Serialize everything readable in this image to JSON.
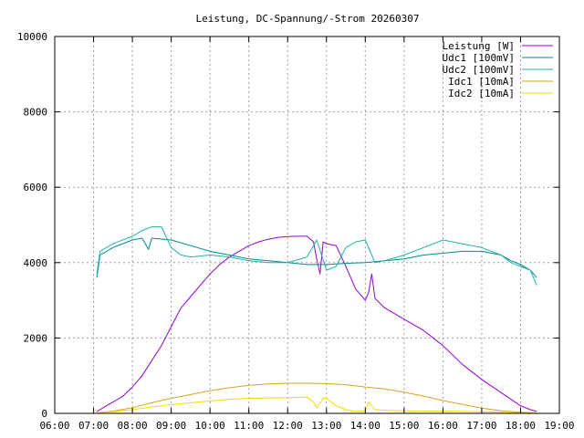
{
  "chart_data": {
    "type": "line",
    "title": "Leistung, DC-Spannung/-Strom 20260307",
    "xlabel": "",
    "ylabel": "",
    "xlim": [
      "06:00",
      "19:00"
    ],
    "ylim": [
      0,
      10000
    ],
    "x_ticks": [
      "06:00",
      "07:00",
      "08:00",
      "09:00",
      "10:00",
      "11:00",
      "12:00",
      "13:00",
      "14:00",
      "15:00",
      "16:00",
      "17:00",
      "18:00",
      "19:00"
    ],
    "y_ticks": [
      "0",
      "2000",
      "4000",
      "6000",
      "8000",
      "10000"
    ],
    "grid": true,
    "legend_position": "top-right",
    "series": [
      {
        "name": "Leistung [W]",
        "color": "#9400d3",
        "x": [
          "07:05",
          "07:10",
          "07:20",
          "07:30",
          "07:45",
          "08:00",
          "08:15",
          "08:30",
          "08:45",
          "09:00",
          "09:15",
          "09:30",
          "09:45",
          "10:00",
          "10:15",
          "10:30",
          "10:45",
          "11:00",
          "11:15",
          "11:30",
          "11:45",
          "12:00",
          "12:15",
          "12:30",
          "12:40",
          "12:45",
          "12:50",
          "12:55",
          "13:00",
          "13:15",
          "13:30",
          "13:45",
          "14:00",
          "14:05",
          "14:10",
          "14:15",
          "14:30",
          "14:45",
          "15:00",
          "15:30",
          "16:00",
          "16:30",
          "17:00",
          "17:30",
          "18:00",
          "18:15",
          "18:25"
        ],
        "y": [
          50,
          100,
          200,
          300,
          450,
          700,
          1000,
          1400,
          1800,
          2300,
          2800,
          3100,
          3400,
          3700,
          3950,
          4150,
          4300,
          4450,
          4550,
          4620,
          4670,
          4690,
          4700,
          4700,
          4550,
          4100,
          3700,
          4550,
          4500,
          4450,
          3900,
          3300,
          3000,
          3200,
          3700,
          3050,
          2800,
          2650,
          2500,
          2200,
          1800,
          1300,
          900,
          550,
          200,
          100,
          50
        ]
      },
      {
        "name": "Udc1 [100mV]",
        "color": "#008b8b",
        "x": [
          "07:05",
          "07:10",
          "07:30",
          "08:00",
          "08:15",
          "08:25",
          "08:30",
          "09:00",
          "09:30",
          "10:00",
          "10:30",
          "11:00",
          "11:30",
          "12:00",
          "12:30",
          "13:00",
          "13:30",
          "14:00",
          "14:30",
          "15:00",
          "15:30",
          "16:00",
          "16:30",
          "17:00",
          "17:30",
          "17:45",
          "18:00",
          "18:15",
          "18:25"
        ],
        "y": [
          3600,
          4200,
          4400,
          4600,
          4650,
          4350,
          4650,
          4600,
          4450,
          4300,
          4200,
          4100,
          4050,
          4000,
          3950,
          3950,
          3980,
          4000,
          4050,
          4100,
          4200,
          4250,
          4300,
          4300,
          4200,
          4050,
          3950,
          3800,
          3600
        ]
      },
      {
        "name": "Udc2 [100mV]",
        "color": "#20b2aa",
        "x": [
          "07:05",
          "07:10",
          "07:30",
          "08:00",
          "08:15",
          "08:30",
          "08:45",
          "09:00",
          "09:15",
          "09:30",
          "10:00",
          "10:30",
          "11:00",
          "11:30",
          "12:00",
          "12:30",
          "12:45",
          "13:00",
          "13:15",
          "13:30",
          "13:45",
          "14:00",
          "14:15",
          "14:30",
          "15:00",
          "15:30",
          "16:00",
          "16:30",
          "17:00",
          "17:30",
          "17:45",
          "18:00",
          "18:15",
          "18:25"
        ],
        "y": [
          3700,
          4300,
          4500,
          4700,
          4850,
          4950,
          4950,
          4400,
          4200,
          4150,
          4200,
          4150,
          4050,
          4000,
          4000,
          4150,
          4600,
          3800,
          3900,
          4400,
          4550,
          4600,
          4000,
          4050,
          4200,
          4400,
          4600,
          4500,
          4400,
          4200,
          4000,
          3900,
          3800,
          3400
        ]
      },
      {
        "name": "Idc1 [10mA]",
        "color": "#daa520",
        "x": [
          "07:05",
          "07:30",
          "08:00",
          "08:30",
          "09:00",
          "09:30",
          "10:00",
          "10:30",
          "11:00",
          "11:30",
          "12:00",
          "12:30",
          "13:00",
          "13:30",
          "14:00",
          "14:30",
          "15:00",
          "15:30",
          "16:00",
          "16:30",
          "17:00",
          "17:30",
          "18:00",
          "18:25"
        ],
        "y": [
          10,
          60,
          150,
          280,
          400,
          500,
          600,
          680,
          740,
          780,
          800,
          800,
          790,
          760,
          700,
          650,
          560,
          460,
          340,
          240,
          140,
          70,
          30,
          10
        ]
      },
      {
        "name": "Idc2 [10mA]",
        "color": "#ffd700",
        "x": [
          "07:05",
          "07:30",
          "08:00",
          "08:30",
          "09:00",
          "09:30",
          "10:00",
          "10:30",
          "11:00",
          "11:30",
          "12:00",
          "12:30",
          "12:40",
          "12:45",
          "12:55",
          "13:00",
          "13:15",
          "13:30",
          "13:45",
          "14:00",
          "14:05",
          "14:15",
          "14:30",
          "15:00",
          "15:30",
          "16:00",
          "16:30",
          "17:00",
          "17:30",
          "18:00",
          "18:25"
        ],
        "y": [
          10,
          40,
          100,
          170,
          230,
          280,
          330,
          370,
          400,
          410,
          420,
          430,
          300,
          150,
          400,
          400,
          200,
          100,
          50,
          60,
          300,
          100,
          80,
          70,
          60,
          60,
          50,
          40,
          30,
          10,
          5
        ]
      }
    ]
  }
}
